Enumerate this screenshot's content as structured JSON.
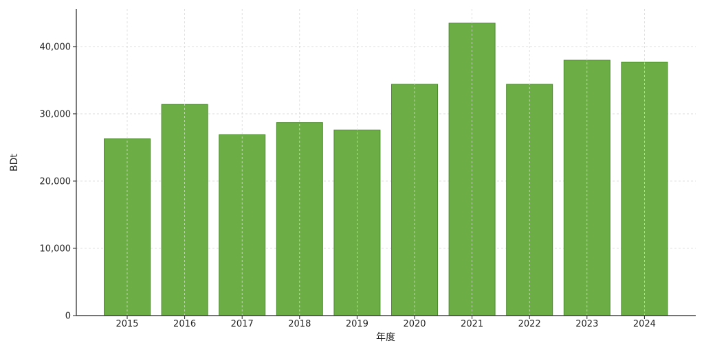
{
  "chart_data": {
    "type": "bar",
    "title": "",
    "xlabel": "年度",
    "ylabel": "BDt",
    "categories": [
      "2015",
      "2016",
      "2017",
      "2018",
      "2019",
      "2020",
      "2021",
      "2022",
      "2023",
      "2024"
    ],
    "values": [
      26300,
      31400,
      26900,
      28700,
      27600,
      34400,
      43500,
      34400,
      38000,
      37700
    ],
    "ylim": [
      0,
      45600
    ],
    "yticks": [
      0,
      10000,
      20000,
      30000,
      40000
    ],
    "ytick_labels": [
      "0",
      "10,000",
      "20,000",
      "30,000",
      "40,000"
    ],
    "grid": true,
    "legend": "none",
    "colors": {
      "bar_fill": "#6cad46",
      "bar_edge": "#4a8a2c",
      "grid": "#d9d9d9",
      "axis": "#222222"
    }
  }
}
